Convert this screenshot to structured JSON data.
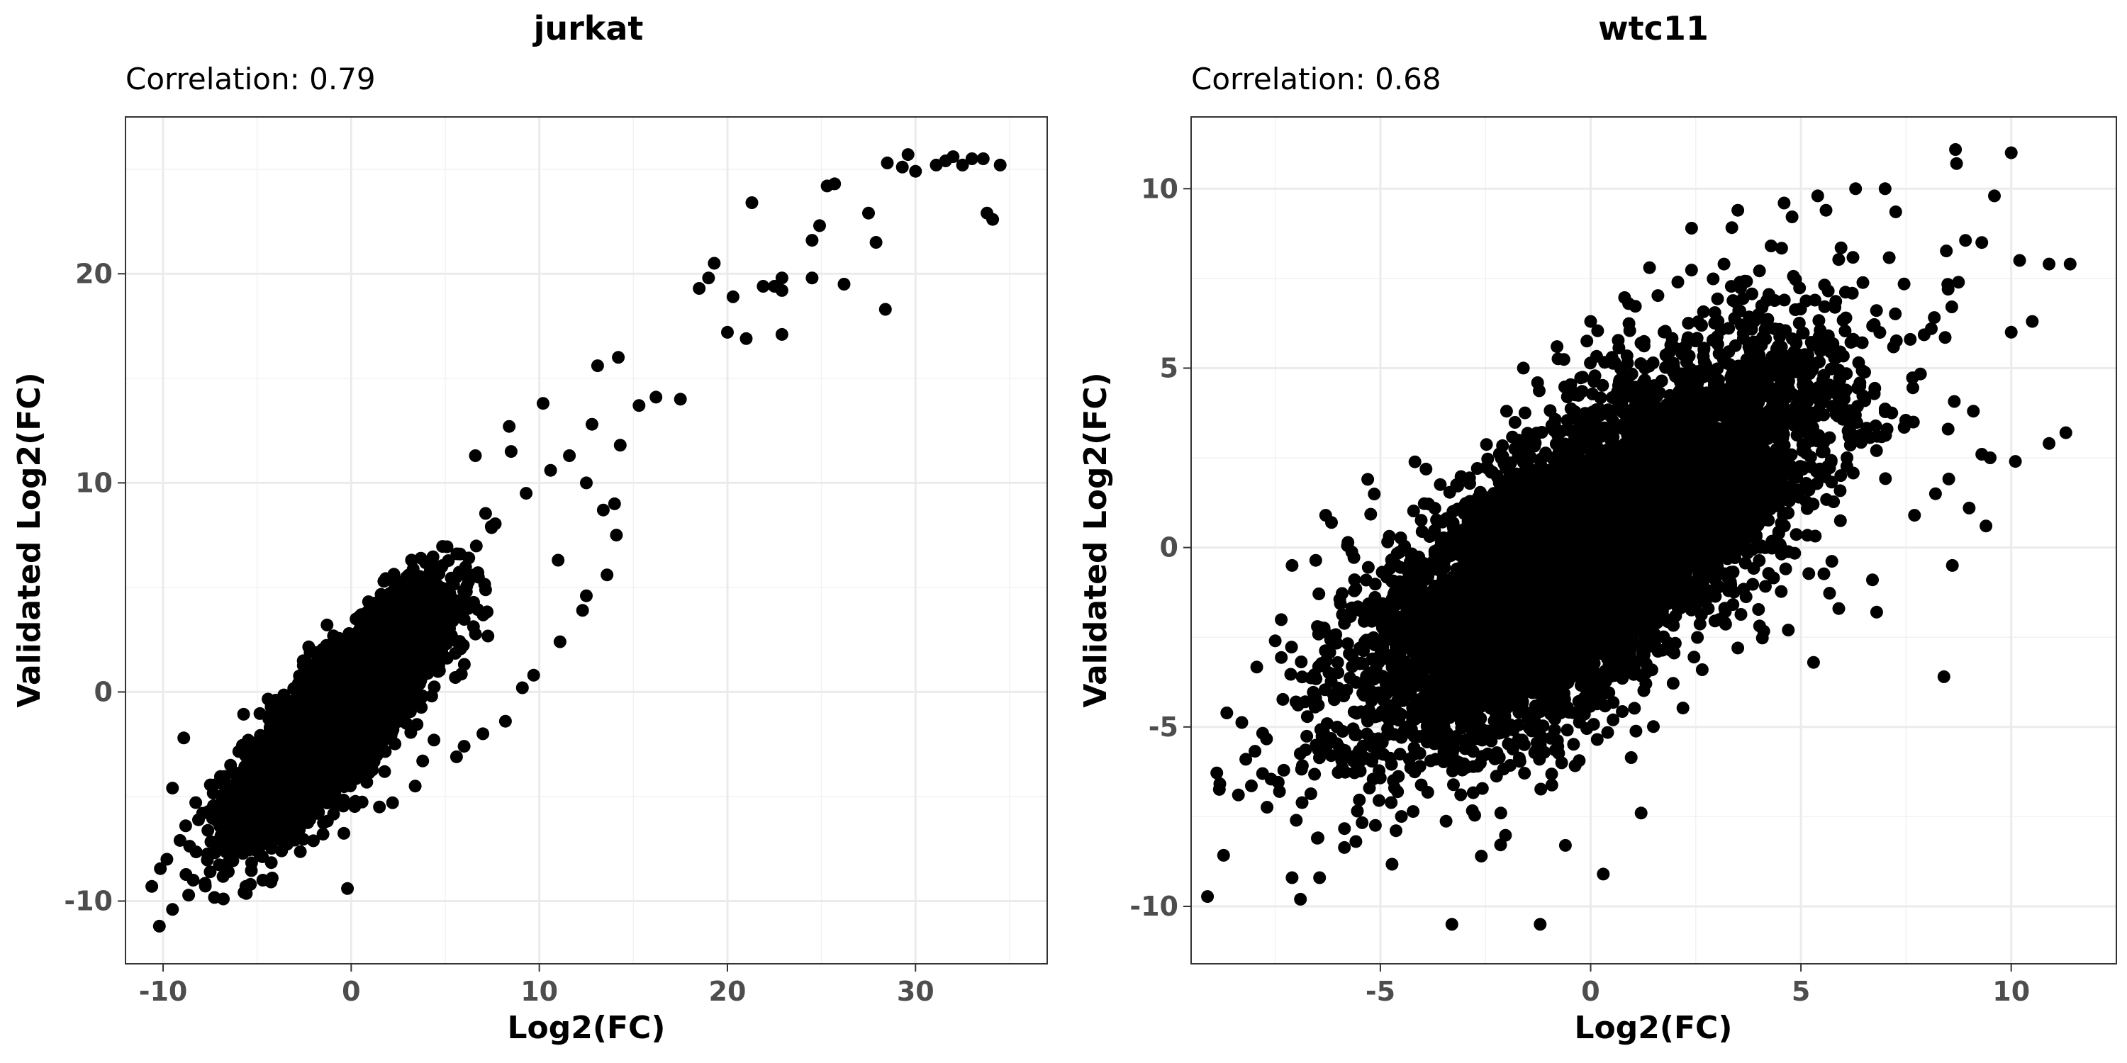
{
  "chart_data": [
    {
      "type": "scatter",
      "title": "jurkat",
      "subtitle": "Correlation: 0.79",
      "xlabel": "Log2(FC)",
      "ylabel": "Validated Log2(FC)",
      "xlim": [
        -12,
        37
      ],
      "ylim": [
        -13,
        27.5
      ],
      "xticks": [
        -10,
        0,
        10,
        20,
        30
      ],
      "yticks": [
        -10,
        0,
        10,
        20
      ],
      "xtick_labels": [
        "-10",
        "0",
        "10",
        "20",
        "30"
      ],
      "ytick_labels": [
        "-10",
        "0",
        "10",
        "20"
      ],
      "grid": true,
      "point_color": "#000000",
      "cloud": {
        "n": 5200,
        "x_mean": -0.5,
        "x_sd": 2.6,
        "y_intercept": -0.6,
        "slope": 0.85,
        "noise_sd": 1.5
      },
      "points": [
        [
          -10.2,
          -11.2
        ],
        [
          -10.6,
          -9.3
        ],
        [
          -9.5,
          -10.4
        ],
        [
          -9.8,
          -8.0
        ],
        [
          -9.1,
          -7.1
        ],
        [
          -8.4,
          -9.0
        ],
        [
          -8.8,
          -6.4
        ],
        [
          -7.5,
          -8.6
        ],
        [
          -6.8,
          -9.9
        ],
        [
          -7.9,
          -5.8
        ],
        [
          -9.5,
          -4.6
        ],
        [
          -8.9,
          -2.2
        ],
        [
          -5.6,
          -9.3
        ],
        [
          -4.7,
          -9.0
        ],
        [
          -4.2,
          -8.9
        ],
        [
          -3.7,
          -7.6
        ],
        [
          -0.2,
          -9.4
        ],
        [
          -1.5,
          -6.8
        ],
        [
          -2.2,
          -6.1
        ],
        [
          1.5,
          -5.5
        ],
        [
          2.2,
          -5.3
        ],
        [
          3.4,
          -4.5
        ],
        [
          3.8,
          -3.3
        ],
        [
          5.6,
          -3.1
        ],
        [
          6.0,
          -2.6
        ],
        [
          4.4,
          -2.3
        ],
        [
          7.0,
          -2.0
        ],
        [
          8.2,
          -1.4
        ],
        [
          9.1,
          0.2
        ],
        [
          9.7,
          0.8
        ],
        [
          11.1,
          2.4
        ],
        [
          12.3,
          3.9
        ],
        [
          12.5,
          4.6
        ],
        [
          13.6,
          5.6
        ],
        [
          14.1,
          7.5
        ],
        [
          13.4,
          8.7
        ],
        [
          14.0,
          9.0
        ],
        [
          14.3,
          11.8
        ],
        [
          15.3,
          13.7
        ],
        [
          12.8,
          12.8
        ],
        [
          12.5,
          10.0
        ],
        [
          10.6,
          10.6
        ],
        [
          11.6,
          11.3
        ],
        [
          10.2,
          13.8
        ],
        [
          8.4,
          12.7
        ],
        [
          8.5,
          11.5
        ],
        [
          6.6,
          11.3
        ],
        [
          9.3,
          9.5
        ],
        [
          11.0,
          6.3
        ],
        [
          13.1,
          15.6
        ],
        [
          14.2,
          16.0
        ],
        [
          16.2,
          14.1
        ],
        [
          17.5,
          14.0
        ],
        [
          18.5,
          19.3
        ],
        [
          19.0,
          19.8
        ],
        [
          19.3,
          20.5
        ],
        [
          20.0,
          17.2
        ],
        [
          20.3,
          18.9
        ],
        [
          21.0,
          16.9
        ],
        [
          21.3,
          23.4
        ],
        [
          21.9,
          19.4
        ],
        [
          22.5,
          19.4
        ],
        [
          22.9,
          19.2
        ],
        [
          22.9,
          17.1
        ],
        [
          22.9,
          19.8
        ],
        [
          24.5,
          19.8
        ],
        [
          24.5,
          21.6
        ],
        [
          24.9,
          22.3
        ],
        [
          25.3,
          24.2
        ],
        [
          25.7,
          24.3
        ],
        [
          26.2,
          19.5
        ],
        [
          27.5,
          22.9
        ],
        [
          27.9,
          21.5
        ],
        [
          28.4,
          18.3
        ],
        [
          28.5,
          25.3
        ],
        [
          29.3,
          25.1
        ],
        [
          29.6,
          25.7
        ],
        [
          30.0,
          24.9
        ],
        [
          31.1,
          25.2
        ],
        [
          31.6,
          25.4
        ],
        [
          32.0,
          25.6
        ],
        [
          32.5,
          25.2
        ],
        [
          33.0,
          25.5
        ],
        [
          33.6,
          25.5
        ],
        [
          33.8,
          22.9
        ],
        [
          34.1,
          22.6
        ],
        [
          34.5,
          25.2
        ]
      ]
    },
    {
      "type": "scatter",
      "title": "wtc11",
      "subtitle": "Correlation: 0.68",
      "xlabel": "Log2(FC)",
      "ylabel": "Validated Log2(FC)",
      "xlim": [
        -9.5,
        12.5
      ],
      "ylim": [
        -11.6,
        12
      ],
      "xticks": [
        -5,
        0,
        5,
        10
      ],
      "yticks": [
        -10,
        -5,
        0,
        5,
        10
      ],
      "xtick_labels": [
        "-5",
        "0",
        "5",
        "10"
      ],
      "ytick_labels": [
        "-10",
        "-5",
        "0",
        "5",
        "10"
      ],
      "grid": true,
      "point_color": "#000000",
      "cloud": {
        "n": 7500,
        "x_mean": 0.0,
        "x_sd": 2.6,
        "y_intercept": 0.0,
        "slope": 0.72,
        "noise_sd": 1.9
      },
      "points": [
        [
          -8.2,
          -5.9
        ],
        [
          -7.8,
          -6.3
        ],
        [
          -7.4,
          -6.8
        ],
        [
          -7.1,
          -9.2
        ],
        [
          -6.9,
          -9.8
        ],
        [
          -7.0,
          -7.6
        ],
        [
          -6.5,
          -8.1
        ],
        [
          -7.5,
          -2.6
        ],
        [
          -7.1,
          -0.5
        ],
        [
          -6.3,
          0.9
        ],
        [
          -5.3,
          1.9
        ],
        [
          -3.3,
          -10.5
        ],
        [
          -1.2,
          -10.5
        ],
        [
          -2.6,
          -8.6
        ],
        [
          -0.6,
          -8.3
        ],
        [
          1.2,
          -7.4
        ],
        [
          0.3,
          -9.1
        ],
        [
          -2.0,
          3.8
        ],
        [
          -1.6,
          5.0
        ],
        [
          -0.8,
          5.6
        ],
        [
          0.0,
          6.3
        ],
        [
          1.4,
          7.8
        ],
        [
          2.4,
          8.9
        ],
        [
          3.5,
          9.4
        ],
        [
          4.6,
          9.6
        ],
        [
          5.4,
          9.8
        ],
        [
          6.3,
          10.0
        ],
        [
          7.0,
          10.0
        ],
        [
          8.7,
          10.7
        ],
        [
          9.6,
          9.8
        ],
        [
          10.0,
          11.0
        ],
        [
          10.9,
          7.9
        ],
        [
          11.4,
          7.9
        ],
        [
          10.2,
          8.0
        ],
        [
          9.3,
          8.5
        ],
        [
          8.5,
          7.2
        ],
        [
          10.5,
          6.3
        ],
        [
          10.0,
          6.0
        ],
        [
          11.3,
          3.2
        ],
        [
          10.9,
          2.9
        ],
        [
          10.1,
          2.4
        ],
        [
          9.5,
          2.5
        ],
        [
          9.3,
          2.6
        ],
        [
          9.1,
          3.8
        ],
        [
          8.5,
          3.3
        ],
        [
          8.2,
          1.5
        ],
        [
          8.6,
          -0.5
        ],
        [
          8.4,
          -3.6
        ],
        [
          6.8,
          -1.8
        ],
        [
          5.3,
          -3.2
        ],
        [
          4.7,
          -2.3
        ],
        [
          3.5,
          -2.8
        ],
        [
          5.9,
          -1.7
        ],
        [
          6.7,
          -0.9
        ],
        [
          7.7,
          0.9
        ],
        [
          9.0,
          1.1
        ],
        [
          9.4,
          0.6
        ],
        [
          6.4,
          4.5
        ],
        [
          7.6,
          5.8
        ],
        [
          8.1,
          6.1
        ]
      ]
    }
  ]
}
